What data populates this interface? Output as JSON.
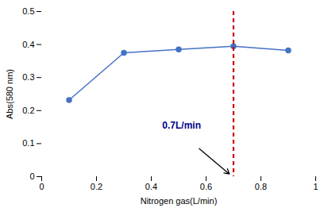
{
  "chart_data": {
    "type": "line",
    "x": [
      0.1,
      0.3,
      0.5,
      0.7,
      0.9
    ],
    "values": [
      0.232,
      0.375,
      0.385,
      0.395,
      0.382
    ],
    "color": "#4472C4",
    "marker": "circle",
    "xlim": [
      0,
      1.0
    ],
    "ylim": [
      0,
      0.5
    ],
    "xticks": [
      0,
      0.2,
      0.4,
      0.6,
      0.8,
      1
    ],
    "yticks": [
      0,
      0.1,
      0.2,
      0.3,
      0.4,
      0.5
    ],
    "xlabel": "Nitrogen gas(L/min)",
    "ylabel": "Abs(580 nm)",
    "grid": false,
    "vlines": [
      {
        "x": 0.7,
        "color": "#cc0000",
        "line_style": "dashed"
      }
    ],
    "annotations": [
      {
        "text": "0.7L/min",
        "x": 0.44,
        "y": 0.145,
        "color": "#00008B"
      }
    ],
    "arrows": [
      {
        "x1": 0.575,
        "y1": 0.085,
        "x2": 0.685,
        "y2": 0.008
      }
    ]
  }
}
